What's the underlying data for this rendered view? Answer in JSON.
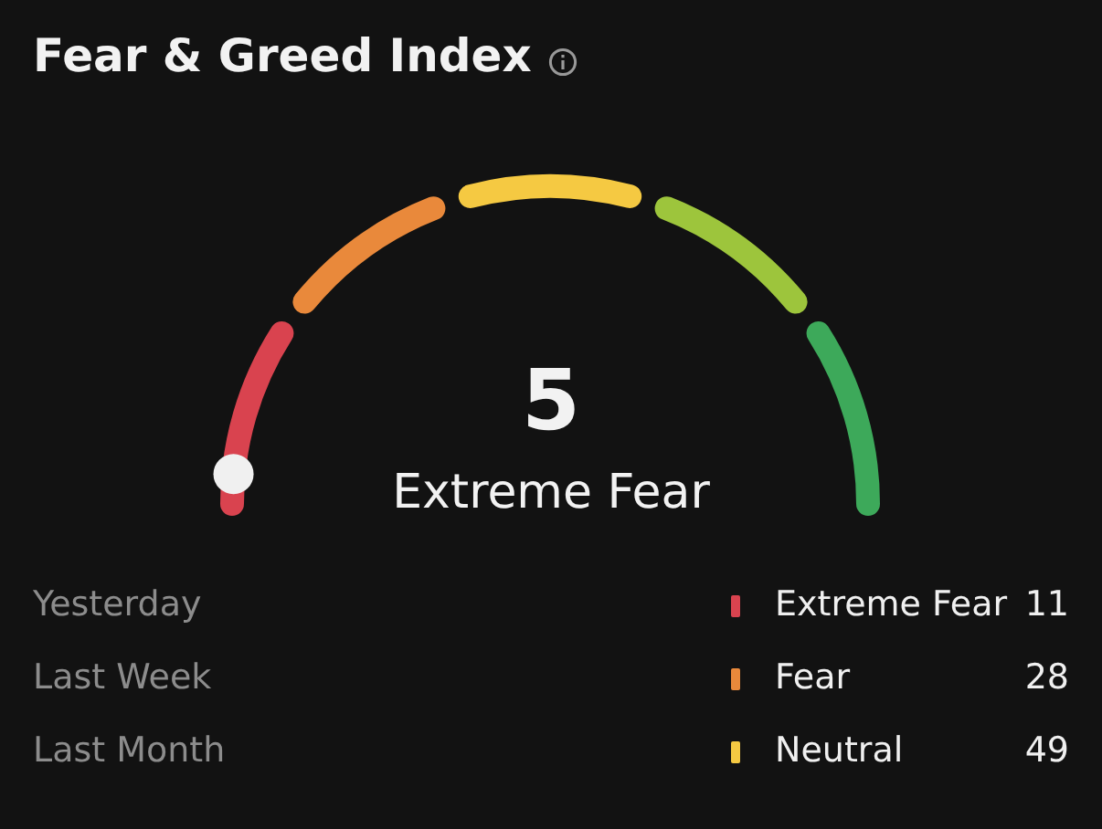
{
  "chart_data": {
    "type": "other",
    "title": "Fear & Greed Index",
    "data_labels": true,
    "categories": [
      "Extreme Fear"
    ],
    "values": [
      5
    ],
    "annotations": [
      "Yesterday",
      "Extreme Fear",
      "11",
      "Last Week",
      "Fear",
      "28",
      "Last Month",
      "Neutral",
      "49"
    ]
  }
}
